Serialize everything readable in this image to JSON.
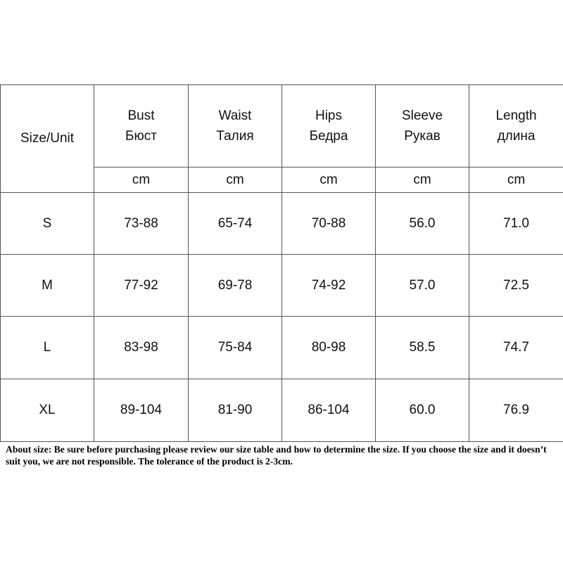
{
  "table": {
    "corner": "Size/Unit",
    "columns": [
      {
        "en": "Bust",
        "ru": "Бюст",
        "unit": "cm"
      },
      {
        "en": "Waist",
        "ru": "Талия",
        "unit": "cm"
      },
      {
        "en": "Hips",
        "ru": "Бедра",
        "unit": "cm"
      },
      {
        "en": "Sleeve",
        "ru": "Рукав",
        "unit": "cm"
      },
      {
        "en": "Length",
        "ru": "длина",
        "unit": "cm"
      }
    ],
    "rows": [
      [
        "S",
        "73-88",
        "65-74",
        "70-88",
        "56.0",
        "71.0"
      ],
      [
        "M",
        "77-92",
        "69-78",
        "74-92",
        "57.0",
        "72.5"
      ],
      [
        "L",
        "83-98",
        "75-84",
        "80-98",
        "58.5",
        "74.7"
      ],
      [
        "XL",
        "89-104",
        "81-90",
        "86-104",
        "60.0",
        "76.9"
      ]
    ]
  },
  "note": "About size: Be sure before purchasing please review our size table and how to determine the size. If you choose the size and it doesn’t suit you, we are not responsible. The tolerance of the product is 2-3cm."
}
